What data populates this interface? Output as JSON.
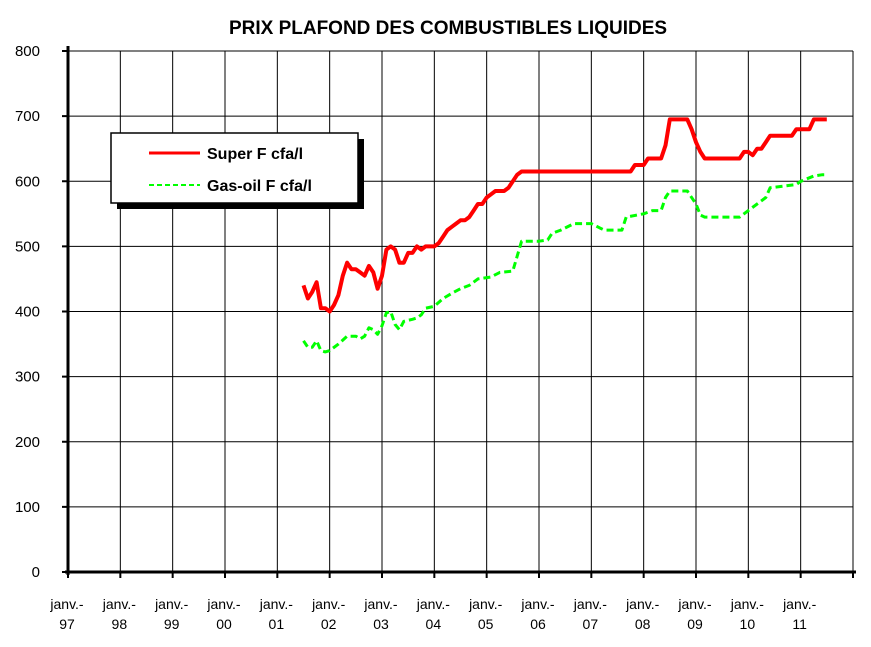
{
  "chart_data": {
    "type": "line",
    "title": "PRIX PLAFOND DES COMBUSTIBLES LIQUIDES",
    "xlabel": "",
    "ylabel": "",
    "ylim": [
      0,
      800
    ],
    "yticks": [
      "0",
      "100",
      "200",
      "300",
      "400",
      "500",
      "600",
      "700",
      "800"
    ],
    "x_categories": [
      [
        "janv.-",
        "97"
      ],
      [
        "janv.-",
        "98"
      ],
      [
        "janv.-",
        "99"
      ],
      [
        "janv.-",
        "00"
      ],
      [
        "janv.-",
        "01"
      ],
      [
        "janv.-",
        "02"
      ],
      [
        "janv.-",
        "03"
      ],
      [
        "janv.-",
        "04"
      ],
      [
        "janv.-",
        "05"
      ],
      [
        "janv.-",
        "06"
      ],
      [
        "janv.-",
        "07"
      ],
      [
        "janv.-",
        "08"
      ],
      [
        "janv.-",
        "09"
      ],
      [
        "janv.-",
        "10"
      ],
      [
        "janv.-",
        "11"
      ]
    ],
    "grid": true,
    "legend_position": "top-left",
    "series": [
      {
        "name": "Super F cfa/l",
        "color": "#ff0000",
        "style": "solid",
        "points": [
          [
            "2001-07",
            440
          ],
          [
            "2001-08",
            420
          ],
          [
            "2001-09",
            430
          ],
          [
            "2001-10",
            445
          ],
          [
            "2001-11",
            405
          ],
          [
            "2001-12",
            405
          ],
          [
            "2002-01",
            400
          ],
          [
            "2002-02",
            410
          ],
          [
            "2002-03",
            425
          ],
          [
            "2002-04",
            455
          ],
          [
            "2002-05",
            475
          ],
          [
            "2002-06",
            465
          ],
          [
            "2002-07",
            465
          ],
          [
            "2002-08",
            460
          ],
          [
            "2002-09",
            455
          ],
          [
            "2002-10",
            470
          ],
          [
            "2002-11",
            460
          ],
          [
            "2002-12",
            435
          ],
          [
            "2003-01",
            455
          ],
          [
            "2003-02",
            495
          ],
          [
            "2003-03",
            500
          ],
          [
            "2003-04",
            495
          ],
          [
            "2003-05",
            475
          ],
          [
            "2003-06",
            475
          ],
          [
            "2003-07",
            490
          ],
          [
            "2003-08",
            490
          ],
          [
            "2003-09",
            500
          ],
          [
            "2003-10",
            495
          ],
          [
            "2003-11",
            500
          ],
          [
            "2003-12",
            500
          ],
          [
            "2004-01",
            500
          ],
          [
            "2004-02",
            505
          ],
          [
            "2004-03",
            515
          ],
          [
            "2004-04",
            525
          ],
          [
            "2004-05",
            530
          ],
          [
            "2004-06",
            535
          ],
          [
            "2004-07",
            540
          ],
          [
            "2004-08",
            540
          ],
          [
            "2004-09",
            545
          ],
          [
            "2004-10",
            555
          ],
          [
            "2004-11",
            565
          ],
          [
            "2004-12",
            565
          ],
          [
            "2005-01",
            575
          ],
          [
            "2005-02",
            580
          ],
          [
            "2005-03",
            585
          ],
          [
            "2005-04",
            585
          ],
          [
            "2005-05",
            585
          ],
          [
            "2005-06",
            590
          ],
          [
            "2005-07",
            600
          ],
          [
            "2005-08",
            610
          ],
          [
            "2005-09",
            615
          ],
          [
            "2006-01",
            615
          ],
          [
            "2006-07",
            615
          ],
          [
            "2007-01",
            615
          ],
          [
            "2007-07",
            615
          ],
          [
            "2007-10",
            615
          ],
          [
            "2007-11",
            625
          ],
          [
            "2008-01",
            625
          ],
          [
            "2008-02",
            635
          ],
          [
            "2008-05",
            635
          ],
          [
            "2008-06",
            655
          ],
          [
            "2008-07",
            695
          ],
          [
            "2008-11",
            695
          ],
          [
            "2008-12",
            680
          ],
          [
            "2009-01",
            660
          ],
          [
            "2009-02",
            645
          ],
          [
            "2009-03",
            635
          ],
          [
            "2009-06",
            635
          ],
          [
            "2009-09",
            635
          ],
          [
            "2009-11",
            635
          ],
          [
            "2009-12",
            645
          ],
          [
            "2010-01",
            645
          ],
          [
            "2010-02",
            640
          ],
          [
            "2010-03",
            650
          ],
          [
            "2010-04",
            650
          ],
          [
            "2010-05",
            660
          ],
          [
            "2010-06",
            670
          ],
          [
            "2010-09",
            670
          ],
          [
            "2010-11",
            670
          ],
          [
            "2010-12",
            680
          ],
          [
            "2011-03",
            680
          ],
          [
            "2011-04",
            695
          ],
          [
            "2011-06",
            695
          ],
          [
            "2011-07",
            695
          ]
        ]
      },
      {
        "name": "Gas-oil F cfa/l",
        "color": "#00ff00",
        "style": "dashed",
        "points": [
          [
            "2001-07",
            355
          ],
          [
            "2001-08",
            345
          ],
          [
            "2001-09",
            345
          ],
          [
            "2001-10",
            355
          ],
          [
            "2001-11",
            340
          ],
          [
            "2001-12",
            338
          ],
          [
            "2002-01",
            340
          ],
          [
            "2002-03",
            350
          ],
          [
            "2002-05",
            362
          ],
          [
            "2002-07",
            362
          ],
          [
            "2002-08",
            358
          ],
          [
            "2002-09",
            362
          ],
          [
            "2002-10",
            375
          ],
          [
            "2002-11",
            372
          ],
          [
            "2002-12",
            365
          ],
          [
            "2003-01",
            378
          ],
          [
            "2003-02",
            398
          ],
          [
            "2003-03",
            400
          ],
          [
            "2003-04",
            380
          ],
          [
            "2003-05",
            372
          ],
          [
            "2003-06",
            385
          ],
          [
            "2003-08",
            388
          ],
          [
            "2003-09",
            390
          ],
          [
            "2003-10",
            395
          ],
          [
            "2003-11",
            405
          ],
          [
            "2004-01",
            408
          ],
          [
            "2004-03",
            420
          ],
          [
            "2004-05",
            428
          ],
          [
            "2004-07",
            435
          ],
          [
            "2004-09",
            440
          ],
          [
            "2004-11",
            450
          ],
          [
            "2005-02",
            453
          ],
          [
            "2005-04",
            460
          ],
          [
            "2005-07",
            462
          ],
          [
            "2005-08",
            485
          ],
          [
            "2005-09",
            508
          ],
          [
            "2006-01",
            508
          ],
          [
            "2006-03",
            510
          ],
          [
            "2006-04",
            520
          ],
          [
            "2006-06",
            525
          ],
          [
            "2006-09",
            535
          ],
          [
            "2007-01",
            535
          ],
          [
            "2007-03",
            528
          ],
          [
            "2007-04",
            525
          ],
          [
            "2007-08",
            525
          ],
          [
            "2007-09",
            545
          ],
          [
            "2008-01",
            550
          ],
          [
            "2008-03",
            555
          ],
          [
            "2008-05",
            555
          ],
          [
            "2008-06",
            575
          ],
          [
            "2008-07",
            585
          ],
          [
            "2008-11",
            585
          ],
          [
            "2009-01",
            565
          ],
          [
            "2009-02",
            548
          ],
          [
            "2009-03",
            545
          ],
          [
            "2009-06",
            545
          ],
          [
            "2009-09",
            545
          ],
          [
            "2009-11",
            545
          ],
          [
            "2009-12",
            550
          ],
          [
            "2010-03",
            565
          ],
          [
            "2010-05",
            575
          ],
          [
            "2010-06",
            590
          ],
          [
            "2010-12",
            595
          ],
          [
            "2011-01",
            600
          ],
          [
            "2011-04",
            608
          ],
          [
            "2011-06",
            610
          ],
          [
            "2011-07",
            610
          ]
        ]
      }
    ]
  }
}
